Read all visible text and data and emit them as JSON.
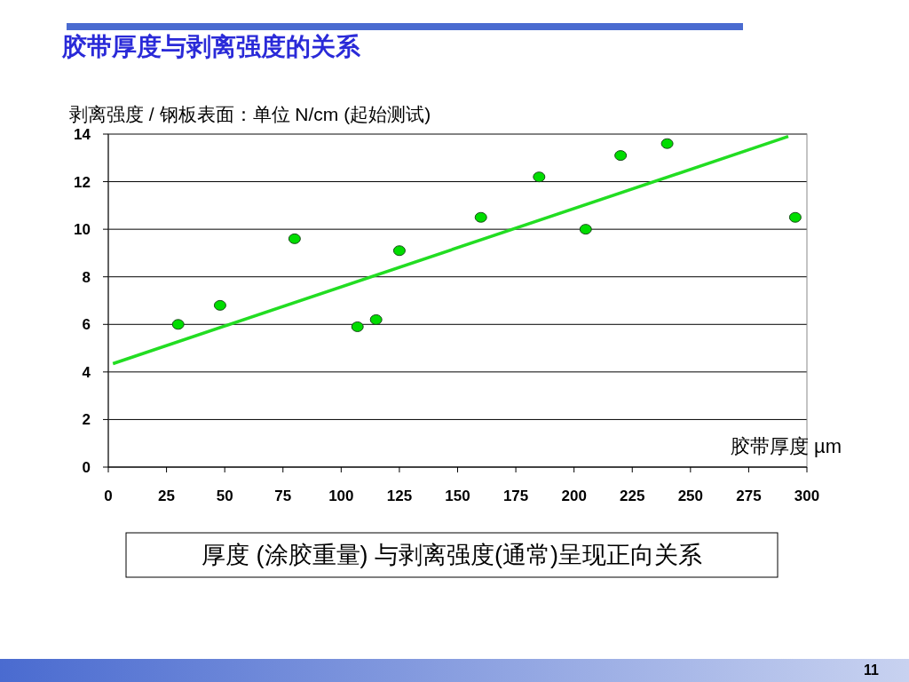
{
  "chart_data": {
    "type": "scatter",
    "title": "胶带厚度与剥离强度的关系",
    "ylabel": "剥离强度 / 钢板表面：单位 N/cm (起始测试)",
    "xlabel": "胶带厚度 µm",
    "series": [
      {
        "color": "#00dd00",
        "marker": "circle",
        "x": [
          30,
          48,
          80,
          107,
          115,
          125,
          160,
          185,
          205,
          220,
          240,
          295
        ],
        "values": [
          6.0,
          6.8,
          9.6,
          5.9,
          6.2,
          9.1,
          10.5,
          12.2,
          10.0,
          13.1,
          13.6,
          10.5
        ]
      },
      {
        "type": "line",
        "color": "#22dd22",
        "x": [
          2,
          292
        ],
        "values": [
          4.35,
          13.9
        ]
      }
    ],
    "xlim": [
      0,
      300
    ],
    "xticks": [
      0,
      25,
      50,
      75,
      100,
      125,
      150,
      175,
      200,
      225,
      250,
      275,
      300
    ],
    "ylim": [
      0,
      14
    ],
    "yticks": [
      0,
      2,
      4,
      6,
      8,
      10,
      12,
      14
    ],
    "grid": "y",
    "annotations": [
      "厚度 (涂胶重量) 与剥离强度(通常)呈现正向关系",
      "11"
    ]
  }
}
